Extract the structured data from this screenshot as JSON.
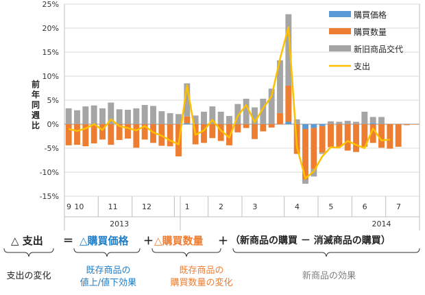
{
  "chart_data": {
    "type": "bar",
    "ylabel": "前年同週比",
    "y_ticks": [
      "25%",
      "20%",
      "15%",
      "10%",
      "5%",
      "0%",
      "-5%",
      "-10%",
      "-15%"
    ],
    "ylim": [
      -15,
      25
    ],
    "x_month_labels": [
      {
        "label": "9",
        "index": 0
      },
      {
        "label": "10",
        "index": 1
      },
      {
        "label": "11",
        "index": 5
      },
      {
        "label": "12",
        "index": 9
      },
      {
        "label": "1",
        "index": 14
      },
      {
        "label": "2",
        "index": 18
      },
      {
        "label": "3",
        "index": 22
      },
      {
        "label": "4",
        "index": 27
      },
      {
        "label": "5",
        "index": 31
      },
      {
        "label": "6",
        "index": 35
      },
      {
        "label": "7",
        "index": 39
      }
    ],
    "x_year_labels": [
      {
        "label": "2013",
        "index": 6
      },
      {
        "label": "2014",
        "index": 37
      }
    ],
    "n_slots": 42,
    "legend_position": "top-right",
    "series": [
      {
        "name": "購買価格",
        "type": "bar",
        "color": "#5b9bd5",
        "values": [
          0,
          0,
          0,
          0,
          0,
          0,
          0,
          0,
          0,
          0,
          0,
          0,
          0,
          0,
          0.2,
          0,
          0,
          0,
          0,
          0,
          0,
          0,
          0,
          0,
          0,
          0,
          0.5,
          0,
          -1.0,
          -0.8,
          -0.4,
          0,
          0,
          0,
          0,
          0,
          0.2,
          0,
          0,
          0,
          0,
          0
        ]
      },
      {
        "name": "購買数量",
        "type": "bar",
        "color": "#ed7d31",
        "values": [
          -4.4,
          -4.3,
          -4.6,
          -4.0,
          -3.2,
          -4.3,
          -3.3,
          -3.0,
          -4.9,
          -3.2,
          -3.9,
          -4.5,
          -4.6,
          -6.7,
          1.4,
          -4.2,
          -3.9,
          -2.9,
          -3.5,
          -4.4,
          -1.7,
          -0.8,
          -3.1,
          -1.5,
          -0.7,
          2.3,
          7.5,
          -6.2,
          -10.5,
          -8.5,
          -5.5,
          -4.8,
          -4.7,
          -5.5,
          -5.8,
          -4.7,
          -3.9,
          -4.9,
          -5.1,
          -4.7,
          -0.2,
          -0.1
        ]
      },
      {
        "name": "新旧商品交代",
        "type": "bar",
        "color": "#a5a5a5",
        "values": [
          3.3,
          2.9,
          3.7,
          3.9,
          3.3,
          4.5,
          3.1,
          3.0,
          3.3,
          4.0,
          3.8,
          2.7,
          2.3,
          2.1,
          6.9,
          1.8,
          2.6,
          3.7,
          2.6,
          1.7,
          4.2,
          5.3,
          3.5,
          5.3,
          7.4,
          11.0,
          14.9,
          1.0,
          -0.9,
          -1.6,
          -0.3,
          0.6,
          0.5,
          0.7,
          0.5,
          2.6,
          1.3,
          1.5,
          0,
          0,
          0,
          0
        ]
      },
      {
        "name": "支出",
        "type": "line",
        "color": "#ffc000",
        "values": [
          -1.0,
          -1.4,
          -0.9,
          0,
          -1.2,
          1.0,
          -0.4,
          -0.8,
          -1.3,
          -0.4,
          -1.7,
          -2.4,
          -3.4,
          -4.2,
          8.1,
          -2.2,
          -1.3,
          0.9,
          -1.3,
          -2.8,
          1.7,
          4.0,
          0.4,
          3.3,
          5.8,
          13.6,
          20.2,
          -4.8,
          -11.3,
          -9.8,
          -6.7,
          -4.8,
          -4.9,
          -3.5,
          -4.3,
          -5.0,
          -0.9,
          -3.4,
          -3.2,
          null,
          null,
          null
        ]
      }
    ]
  },
  "formula": {
    "spending": "△ 支出",
    "equals": "＝",
    "price": "△購買価格",
    "plus1": "＋",
    "quantity": "△購買数量",
    "plus2": "＋",
    "new_products": "（新商品の購買 － 消滅商品の購買）",
    "desc_spending": "支出の変化",
    "desc_price_1": "既存商品の",
    "desc_price_2": "値上/値下効果",
    "desc_quantity_1": "既存商品の",
    "desc_quantity_2": "購買数量の変化",
    "desc_new": "新商品の効果",
    "color_price": "#1f7ec8",
    "color_quantity": "#ed7d31",
    "color_new": "#7f7f7f"
  }
}
